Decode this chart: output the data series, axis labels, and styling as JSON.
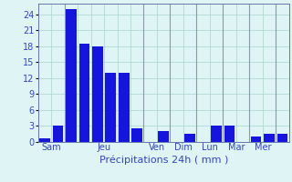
{
  "bar_values": [
    0.6,
    3.0,
    25.0,
    18.5,
    18.0,
    13.0,
    13.0,
    2.5,
    0,
    2.0,
    0,
    1.5,
    0,
    3.0,
    3.0,
    0,
    1.0,
    1.5,
    1.5
  ],
  "n_bars": 19,
  "day_separators": [
    1.5,
    7.5,
    9.5,
    11.5,
    13.5,
    15.5,
    17.5
  ],
  "day_tick_positions": [
    0.5,
    4.5,
    8.5,
    10.5,
    12.5,
    14.5,
    16.5
  ],
  "day_tick_labels": [
    "Sam",
    "Jeu",
    "Ven",
    "Dim",
    "Lun",
    "Mar",
    "Mer"
  ],
  "xlabel": "Précipitations 24h ( mm )",
  "ylim": [
    0,
    26
  ],
  "yticks": [
    0,
    3,
    6,
    9,
    12,
    15,
    18,
    21,
    24
  ],
  "bar_color": "#1515dd",
  "background_color": "#dff5f5",
  "grid_color": "#b0d8d8",
  "separator_color": "#8899aa",
  "axis_color": "#6677aa",
  "text_color": "#3344bb",
  "bar_width": 0.8,
  "xlabel_fontsize": 8,
  "tick_fontsize": 7
}
